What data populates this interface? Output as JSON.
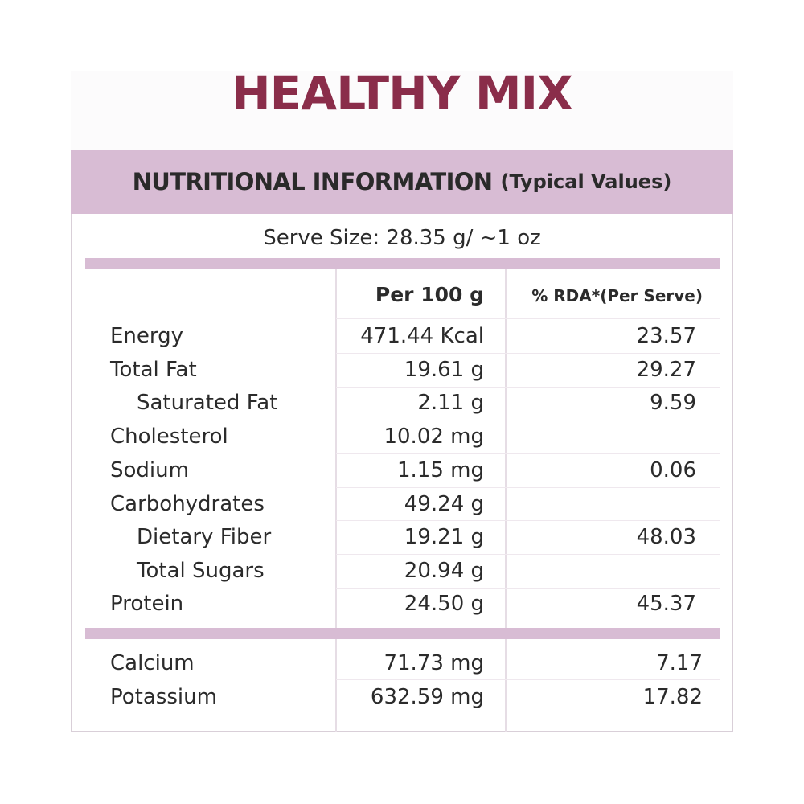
{
  "brand": {
    "title": "HEALTHY MIX"
  },
  "header": {
    "main": "NUTRITIONAL INFORMATION",
    "sub": "(Typical Values)"
  },
  "serve_size": "Serve Size: 28.35 g/ ~1 oz",
  "columns": {
    "per100": "Per 100 g",
    "rda": "% RDA*(Per Serve)"
  },
  "rows": [
    {
      "name": "Energy",
      "per100": "471.44 Kcal",
      "rda": "23.57"
    },
    {
      "name": "Total Fat",
      "per100": "19.61 g",
      "rda": "29.27"
    },
    {
      "name": "Saturated Fat",
      "per100": "2.11 g",
      "rda": "9.59"
    },
    {
      "name": "Cholesterol",
      "per100": "10.02 mg",
      "rda": ""
    },
    {
      "name": "Sodium",
      "per100": "1.15 mg",
      "rda": "0.06"
    },
    {
      "name": "Carbohydrates",
      "per100": "49.24 g",
      "rda": ""
    },
    {
      "name": "Dietary Fiber",
      "per100": "19.21 g",
      "rda": "48.03"
    },
    {
      "name": "Total Sugars",
      "per100": "20.94 g",
      "rda": ""
    },
    {
      "name": "Protein",
      "per100": "24.50 g",
      "rda": "45.37"
    }
  ],
  "minerals": [
    {
      "name": "Calcium",
      "per100": "71.73 mg",
      "rda": "7.17"
    },
    {
      "name": "Potassium",
      "per100": "632.59 mg",
      "rda": "17.82"
    }
  ],
  "colors": {
    "title": "#8a2d4a",
    "band": "#d8bcd4",
    "text": "#2b2b2b"
  }
}
